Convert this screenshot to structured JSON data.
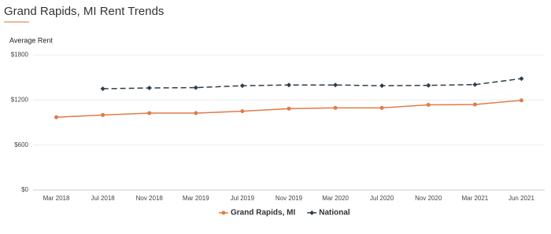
{
  "chart_data": {
    "type": "line",
    "title": "Grand Rapids, MI Rent Trends",
    "y_label": "Average Rent",
    "categories": [
      "Mar 2018",
      "Jul 2018",
      "Nov 2018",
      "Mar 2019",
      "Jul 2019",
      "Nov 2019",
      "Mar 2020",
      "Jul 2020",
      "Nov 2020",
      "Mar 2021",
      "Jun 2021"
    ],
    "series": [
      {
        "name": "Grand Rapids, MI",
        "color": "#e07b47",
        "dashed": false,
        "values": [
          970,
          1000,
          1025,
          1025,
          1050,
          1085,
          1095,
          1095,
          1135,
          1140,
          1195
        ]
      },
      {
        "name": "National",
        "color": "#2d3e4a",
        "dashed": true,
        "values": [
          null,
          1350,
          1360,
          1365,
          1390,
          1400,
          1400,
          1390,
          1395,
          1405,
          1485
        ]
      }
    ],
    "ylim": [
      0,
      1800
    ],
    "yticks": [
      {
        "value": 0,
        "label": "$0"
      },
      {
        "value": 600,
        "label": "$600"
      },
      {
        "value": 1200,
        "label": "$1200"
      },
      {
        "value": 1800,
        "label": "$1800"
      }
    ],
    "grid": true,
    "legend": "bottom"
  }
}
